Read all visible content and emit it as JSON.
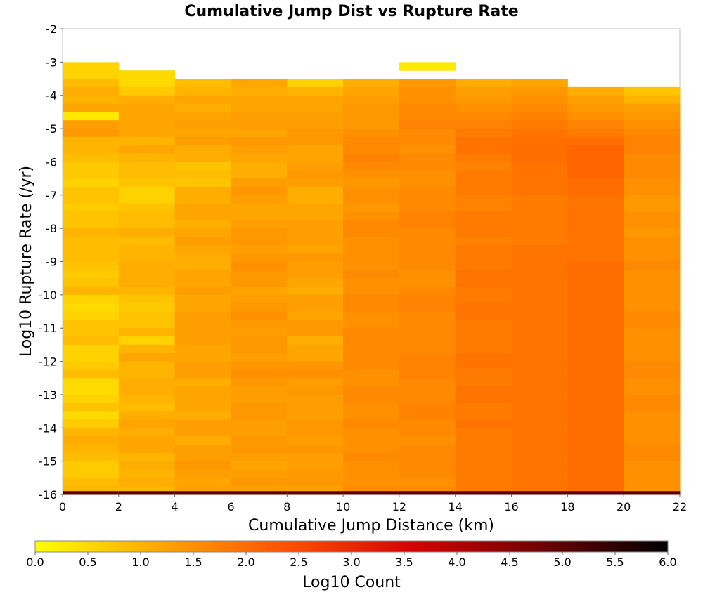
{
  "chart_data": {
    "type": "heatmap",
    "title": "Cumulative Jump Dist vs Rupture Rate",
    "xlabel": "Cumulative Jump Distance (km)",
    "ylabel": "Log10 Rupture Rate (/yr)",
    "xlim": [
      0,
      22
    ],
    "ylim": [
      -16,
      -2
    ],
    "x_ticks": [
      0,
      2,
      4,
      6,
      8,
      10,
      12,
      14,
      16,
      18,
      20,
      22
    ],
    "y_ticks": [
      -2,
      -3,
      -4,
      -5,
      -6,
      -7,
      -8,
      -9,
      -10,
      -11,
      -12,
      -13,
      -14,
      -15,
      -16
    ],
    "x_bin_width": 2,
    "y_bin_height": 0.25,
    "x_bins": [
      1,
      3,
      5,
      7,
      9,
      11,
      13,
      15,
      17,
      19,
      21
    ],
    "y_bin_top": -3.0,
    "y_bin_bottom": -16.0,
    "column_top_edges": [
      -3.0,
      -3.25,
      -3.5,
      -3.5,
      -3.5,
      -3.5,
      -3.0,
      -3.5,
      -3.5,
      -3.75,
      -3.75
    ],
    "empty_bins": [
      {
        "x": 13,
        "y_from": -3.25,
        "y_to": -3.5
      }
    ],
    "bottom_row_value": 5.0,
    "z_values": [
      [
        0.6,
        0.6,
        0.9,
        1.1,
        1.0,
        1.2,
        0.3,
        1.3,
        1.4,
        1.0,
        1.0,
        0.9,
        0.7,
        0.7,
        0.6,
        0.8,
        0.8,
        0.7,
        0.8,
        0.8,
        1.0,
        0.9,
        0.9,
        0.9,
        0.8,
        0.7,
        0.8,
        1.0,
        0.6,
        0.5,
        0.6,
        0.8,
        0.8,
        0.9,
        0.6,
        0.6,
        0.7,
        0.9,
        0.5,
        0.5,
        0.6,
        0.8,
        0.5,
        0.7,
        1.0,
        1.1,
        1.0,
        0.9,
        0.7,
        0.7,
        0.9,
        1.0
      ],
      [
        0.5,
        0.5,
        0.7,
        1.1,
        1.2,
        1.2,
        1.2,
        1.2,
        1.0,
        1.2,
        1.0,
        0.9,
        0.9,
        0.8,
        0.6,
        0.6,
        0.8,
        0.9,
        0.9,
        1.1,
        0.9,
        1.0,
        1.0,
        1.1,
        1.1,
        1.1,
        1.0,
        0.8,
        0.7,
        0.8,
        0.8,
        1.0,
        0.6,
        1.0,
        1.2,
        1.0,
        1.0,
        1.1,
        1.1,
        1.0,
        0.9,
        1.1,
        1.2,
        1.1,
        1.2,
        1.2,
        1.0,
        1.1,
        1.0,
        1.1,
        1.0
      ],
      [
        0.9,
        1.0,
        1.2,
        1.1,
        1.2,
        1.3,
        1.2,
        1.3,
        1.1,
        1.1,
        0.8,
        0.9,
        0.8,
        1.1,
        1.1,
        1.2,
        1.2,
        1.1,
        1.2,
        1.3,
        1.2,
        1.1,
        1.1,
        1.2,
        1.2,
        1.3,
        1.2,
        1.2,
        1.3,
        1.3,
        1.3,
        1.3,
        1.2,
        1.2,
        1.3,
        1.3,
        1.1,
        1.2,
        1.2,
        1.2,
        1.1,
        1.3,
        1.3,
        1.1,
        1.3,
        1.3,
        1.4,
        1.3,
        1.2,
        1.3
      ],
      [
        1.2,
        1.1,
        1.2,
        1.2,
        1.3,
        1.3,
        1.2,
        1.4,
        1.3,
        1.2,
        1.1,
        1.1,
        1.3,
        1.4,
        1.3,
        1.2,
        1.2,
        1.3,
        1.4,
        1.4,
        1.3,
        1.4,
        1.5,
        1.4,
        1.4,
        1.2,
        1.3,
        1.4,
        1.5,
        1.4,
        1.3,
        1.4,
        1.4,
        1.3,
        1.4,
        1.5,
        1.4,
        1.3,
        1.3,
        1.4,
        1.4,
        1.3,
        1.3,
        1.4,
        1.4,
        1.3,
        1.2,
        1.3,
        1.4,
        1.3
      ],
      [
        0.6,
        1.0,
        1.2,
        1.2,
        1.3,
        1.3,
        1.4,
        1.4,
        1.2,
        1.2,
        1.3,
        1.4,
        1.3,
        1.1,
        1.1,
        1.2,
        1.2,
        1.3,
        1.3,
        1.3,
        1.2,
        1.4,
        1.3,
        1.3,
        1.2,
        1.1,
        1.3,
        1.3,
        1.2,
        1.4,
        1.4,
        1.1,
        1.2,
        1.2,
        1.4,
        1.5,
        1.3,
        1.4,
        1.3,
        1.3,
        1.3,
        1.4,
        1.4,
        1.3,
        1.4,
        1.3,
        1.3,
        1.4,
        1.4,
        1.3
      ],
      [
        1.1,
        1.2,
        1.3,
        1.4,
        1.4,
        1.4,
        1.5,
        1.6,
        1.6,
        1.7,
        1.6,
        1.5,
        1.4,
        1.5,
        1.5,
        1.4,
        1.5,
        1.6,
        1.6,
        1.5,
        1.5,
        1.5,
        1.5,
        1.6,
        1.5,
        1.5,
        1.6,
        1.6,
        1.5,
        1.5,
        1.6,
        1.6,
        1.6,
        1.6,
        1.6,
        1.5,
        1.5,
        1.6,
        1.6,
        1.5,
        1.5,
        1.6,
        1.5,
        1.5,
        1.5,
        1.6,
        1.5,
        1.5,
        1.5,
        1.6
      ],
      [
        0.3,
        1.2,
        1.4,
        1.5,
        1.5,
        1.6,
        1.6,
        1.7,
        1.6,
        1.6,
        1.5,
        1.6,
        1.6,
        1.5,
        1.5,
        1.6,
        1.6,
        1.6,
        1.7,
        1.7,
        1.6,
        1.6,
        1.6,
        1.6,
        1.6,
        1.5,
        1.5,
        1.6,
        1.7,
        1.7,
        1.6,
        1.6,
        1.6,
        1.6,
        1.6,
        1.7,
        1.7,
        1.7,
        1.6,
        1.6,
        1.6,
        1.7,
        1.7,
        1.6,
        1.6,
        1.5,
        1.6,
        1.6,
        1.6,
        1.6,
        1.5,
        1.6
      ],
      [
        1.1,
        1.3,
        1.4,
        1.5,
        1.6,
        1.7,
        1.8,
        1.9,
        1.9,
        1.8,
        1.7,
        1.8,
        1.8,
        1.8,
        1.7,
        1.7,
        1.8,
        1.8,
        1.8,
        1.7,
        1.8,
        1.8,
        1.8,
        1.9,
        1.9,
        1.8,
        1.8,
        1.9,
        1.9,
        1.8,
        1.8,
        1.8,
        1.8,
        1.9,
        1.9,
        1.8,
        1.8,
        1.9,
        1.9,
        1.8,
        1.8,
        1.9,
        1.8,
        1.8,
        1.8,
        1.8,
        1.8,
        1.8,
        1.8,
        1.8
      ],
      [
        1.2,
        1.4,
        1.5,
        1.6,
        1.7,
        1.8,
        1.9,
        2.0,
        2.0,
        2.0,
        1.9,
        1.9,
        1.9,
        1.9,
        1.8,
        1.8,
        1.8,
        1.8,
        1.8,
        1.8,
        1.9,
        1.9,
        1.9,
        1.9,
        1.9,
        1.9,
        1.9,
        1.9,
        1.9,
        1.9,
        1.9,
        1.9,
        1.9,
        1.9,
        1.9,
        1.9,
        1.9,
        1.9,
        1.9,
        1.9,
        1.9,
        1.9,
        1.9,
        1.9,
        1.9,
        1.9,
        1.9,
        1.9,
        1.9,
        1.9
      ],
      [
        1.1,
        1.3,
        1.4,
        1.5,
        1.7,
        1.8,
        2.0,
        2.1,
        2.1,
        2.1,
        2.1,
        2.0,
        2.0,
        1.9,
        1.9,
        1.9,
        1.9,
        1.9,
        1.9,
        1.9,
        1.9,
        2.0,
        2.0,
        2.0,
        2.0,
        2.0,
        2.0,
        2.0,
        2.0,
        2.0,
        2.0,
        2.0,
        2.0,
        2.0,
        2.0,
        2.0,
        2.0,
        2.0,
        2.0,
        2.0,
        2.0,
        2.0,
        2.0,
        2.0,
        2.0,
        2.0,
        2.0,
        2.0,
        2.0,
        2.0,
        2.0
      ],
      [
        0.8,
        1.0,
        1.3,
        1.4,
        1.5,
        1.6,
        1.7,
        1.7,
        1.6,
        1.6,
        1.6,
        1.5,
        1.5,
        1.4,
        1.4,
        1.5,
        1.5,
        1.4,
        1.5,
        1.5,
        1.5,
        1.6,
        1.5,
        1.5,
        1.5,
        1.5,
        1.5,
        1.6,
        1.6,
        1.5,
        1.5,
        1.5,
        1.5,
        1.6,
        1.6,
        1.5,
        1.5,
        1.6,
        1.6,
        1.5,
        1.5,
        1.5,
        1.5,
        1.6,
        1.6,
        1.5,
        1.5,
        1.5,
        1.5,
        1.6,
        1.6
      ]
    ],
    "colorbar": {
      "label": "Log10 Count",
      "min": 0.0,
      "max": 6.0,
      "ticks": [
        "0.0",
        "0.5",
        "1.0",
        "1.5",
        "2.0",
        "2.5",
        "3.0",
        "3.5",
        "4.0",
        "4.5",
        "5.0",
        "5.5",
        "6.0"
      ],
      "colors": [
        "#ffff00",
        "#ffa500",
        "#ff5000",
        "#d40000",
        "#6e0000",
        "#000000"
      ]
    },
    "grid": false,
    "legend": "bottom"
  }
}
